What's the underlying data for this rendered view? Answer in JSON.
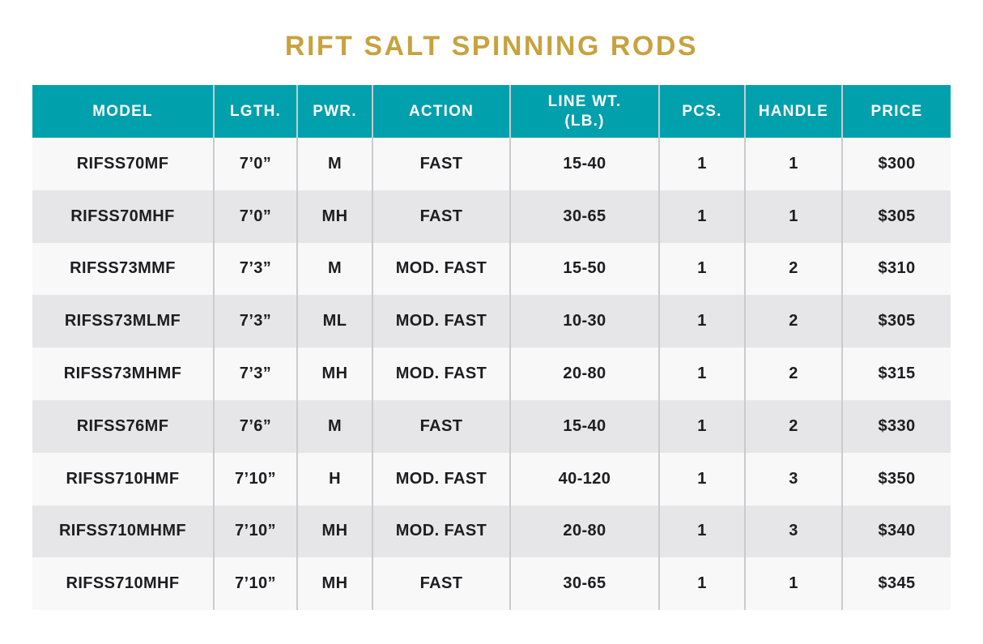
{
  "title": "RIFT SALT SPINNING RODS",
  "colors": {
    "title_gold": "#C7A23E",
    "header_teal": "#00A0AC",
    "header_text": "#FFFFFF",
    "row_odd": "#F8F8F9",
    "row_even": "#E6E6E8",
    "cell_text": "#1D1D1F",
    "divider": "#C9CBCC"
  },
  "table": {
    "columns": [
      {
        "key": "model",
        "label": "MODEL"
      },
      {
        "key": "length",
        "label": "LGTH."
      },
      {
        "key": "power",
        "label": "PWR."
      },
      {
        "key": "action",
        "label": "ACTION"
      },
      {
        "key": "line_wt",
        "label": "LINE WT.\n(LB.)"
      },
      {
        "key": "pcs",
        "label": "PCS."
      },
      {
        "key": "handle",
        "label": "HANDLE"
      },
      {
        "key": "price",
        "label": "PRICE"
      }
    ]
  },
  "chart_data": {
    "type": "table",
    "title": "RIFT SALT SPINNING RODS",
    "columns": [
      "MODEL",
      "LGTH.",
      "PWR.",
      "ACTION",
      "LINE WT. (LB.)",
      "PCS.",
      "HANDLE",
      "PRICE"
    ],
    "rows": [
      [
        "RIFSS70MF",
        "7’0”",
        "M",
        "FAST",
        "15-40",
        "1",
        "1",
        "$300"
      ],
      [
        "RIFSS70MHF",
        "7’0”",
        "MH",
        "FAST",
        "30-65",
        "1",
        "1",
        "$305"
      ],
      [
        "RIFSS73MMF",
        "7’3”",
        "M",
        "MOD. FAST",
        "15-50",
        "1",
        "2",
        "$310"
      ],
      [
        "RIFSS73MLMF",
        "7’3”",
        "ML",
        "MOD. FAST",
        "10-30",
        "1",
        "2",
        "$305"
      ],
      [
        "RIFSS73MHMF",
        "7’3”",
        "MH",
        "MOD. FAST",
        "20-80",
        "1",
        "2",
        "$315"
      ],
      [
        "RIFSS76MF",
        "7’6”",
        "M",
        "FAST",
        "15-40",
        "1",
        "2",
        "$330"
      ],
      [
        "RIFSS710HMF",
        "7’10”",
        "H",
        "MOD. FAST",
        "40-120",
        "1",
        "3",
        "$350"
      ],
      [
        "RIFSS710MHMF",
        "7’10”",
        "MH",
        "MOD. FAST",
        "20-80",
        "1",
        "3",
        "$340"
      ],
      [
        "RIFSS710MHF",
        "7’10”",
        "MH",
        "FAST",
        "30-65",
        "1",
        "1",
        "$345"
      ]
    ]
  }
}
